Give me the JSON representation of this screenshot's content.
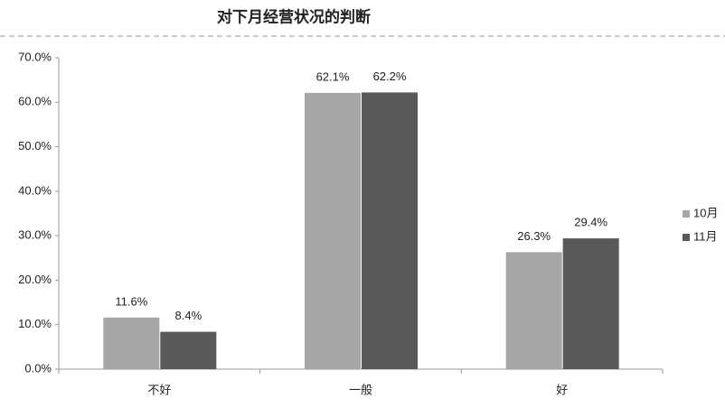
{
  "chart_data": {
    "type": "bar",
    "title": "对下月经营状况的判断",
    "categories": [
      "不好",
      "一般",
      "好"
    ],
    "series": [
      {
        "name": "10月",
        "color": "#a6a6a6",
        "values": [
          11.6,
          62.1,
          26.3
        ],
        "value_labels": [
          "11.6%",
          "62.1%",
          "26.3%"
        ]
      },
      {
        "name": "11月",
        "color": "#595959",
        "values": [
          8.4,
          62.2,
          29.4
        ],
        "value_labels": [
          "8.4%",
          "62.2%",
          "29.4%"
        ]
      }
    ],
    "ylim": [
      0,
      70
    ],
    "yticks": [
      {
        "value": 0,
        "label": "0.0%"
      },
      {
        "value": 10,
        "label": "10.0%"
      },
      {
        "value": 20,
        "label": "20.0%"
      },
      {
        "value": 30,
        "label": "30.0%"
      },
      {
        "value": 40,
        "label": "40.0%"
      },
      {
        "value": 50,
        "label": "50.0%"
      },
      {
        "value": 60,
        "label": "60.0%"
      },
      {
        "value": 70,
        "label": "70.0%"
      }
    ],
    "legend": "right"
  }
}
